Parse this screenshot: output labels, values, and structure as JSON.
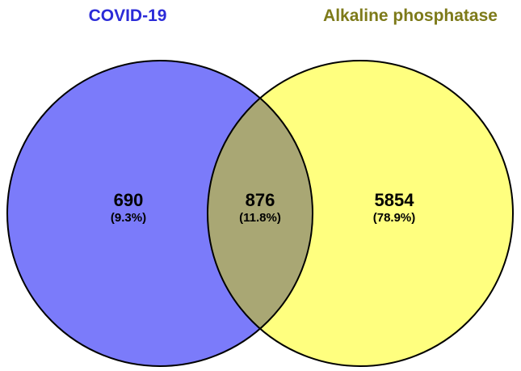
{
  "sets": [
    {
      "name": "COVID-19",
      "color": "#2b2bd8",
      "fill": "#7b7bfa"
    },
    {
      "name": "Alkaline phosphatase",
      "color": "#7d7a19",
      "fill": "#ffff7f"
    }
  ],
  "overlap_fill": "#a9a774",
  "regions": {
    "left_only": {
      "count": "690",
      "percent": "(9.3%)"
    },
    "both": {
      "count": "876",
      "percent": "(11.8%)"
    },
    "right_only": {
      "count": "5854",
      "percent": "(78.9%)"
    }
  }
}
